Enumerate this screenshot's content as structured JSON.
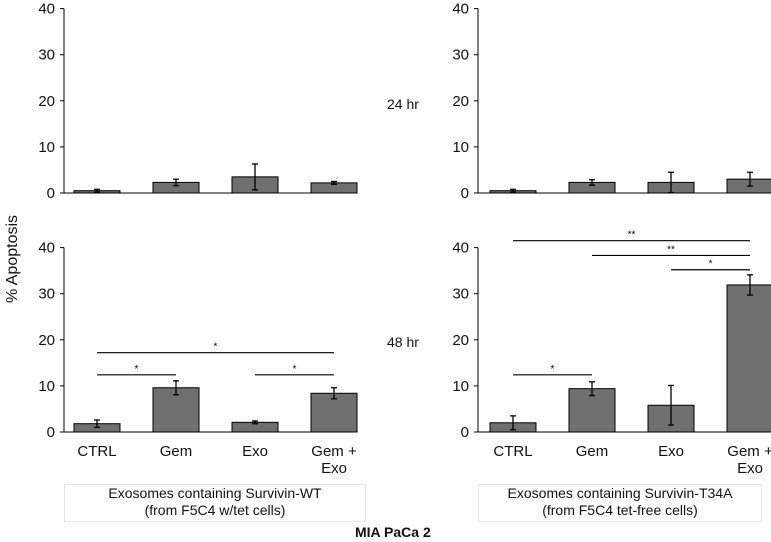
{
  "y_axis_label": "% Apoptosis",
  "row_labels": [
    "24 hr",
    "48 hr"
  ],
  "footer_label": "MIA PaCa 2",
  "group_captions": [
    {
      "line1": "Exosomes containing Survivin-WT",
      "line2": "(from F5C4 w/tet cells)"
    },
    {
      "line1": "Exosomes containing Survivin-T34A",
      "line2": "(from F5C4 tet-free cells)"
    }
  ],
  "colors": {
    "bar": "#707070",
    "axis": "#000000"
  },
  "chart_data": [
    {
      "type": "bar",
      "panel": "top-left",
      "time": "24 hr",
      "group": "Survivin-WT",
      "categories": [
        "CTRL",
        "Gem",
        "Exo",
        "Gem + Exo"
      ],
      "values": [
        0.5,
        2.3,
        3.5,
        2.2
      ],
      "errors": [
        0.3,
        0.7,
        2.8,
        0.3
      ],
      "ylim": [
        0,
        40
      ],
      "yticks": [
        0,
        10,
        20,
        30,
        40
      ],
      "show_category_labels": false,
      "significance": []
    },
    {
      "type": "bar",
      "panel": "top-right",
      "time": "24 hr",
      "group": "Survivin-T34A",
      "categories": [
        "CTRL",
        "Gem",
        "Exo",
        "Gem + Exo"
      ],
      "values": [
        0.5,
        2.3,
        2.3,
        3.0
      ],
      "errors": [
        0.3,
        0.6,
        2.2,
        1.5
      ],
      "ylim": [
        0,
        40
      ],
      "yticks": [
        0,
        10,
        20,
        30,
        40
      ],
      "show_category_labels": false,
      "significance": []
    },
    {
      "type": "bar",
      "panel": "bottom-left",
      "time": "48 hr",
      "group": "Survivin-WT",
      "categories": [
        "CTRL",
        "Gem",
        "Exo",
        "Gem + Exo"
      ],
      "values": [
        1.8,
        9.6,
        2.1,
        8.4
      ],
      "errors": [
        0.8,
        1.5,
        0.3,
        1.2
      ],
      "ylim": [
        0,
        40
      ],
      "yticks": [
        0,
        10,
        20,
        30,
        40
      ],
      "show_category_labels": true,
      "significance": [
        {
          "from": 0,
          "to": 3,
          "y": 17.2,
          "label": "*"
        },
        {
          "from": 0,
          "to": 1,
          "y": 12.4,
          "label": "*"
        },
        {
          "from": 2,
          "to": 3,
          "y": 12.4,
          "label": "*"
        }
      ]
    },
    {
      "type": "bar",
      "panel": "bottom-right",
      "time": "48 hr",
      "group": "Survivin-T34A",
      "categories": [
        "CTRL",
        "Gem",
        "Exo",
        "Gem + Exo"
      ],
      "values": [
        2.0,
        9.4,
        5.8,
        31.9
      ],
      "errors": [
        1.5,
        1.5,
        4.3,
        2.2
      ],
      "ylim": [
        0,
        40
      ],
      "yticks": [
        0,
        10,
        20,
        30,
        40
      ],
      "show_category_labels": true,
      "significance": [
        {
          "from": 0,
          "to": 3,
          "y": 41.5,
          "label": "**"
        },
        {
          "from": 1,
          "to": 3,
          "y": 38.3,
          "label": "**"
        },
        {
          "from": 2,
          "to": 3,
          "y": 35.2,
          "label": "*"
        },
        {
          "from": 0,
          "to": 1,
          "y": 12.4,
          "label": "*"
        }
      ]
    }
  ]
}
